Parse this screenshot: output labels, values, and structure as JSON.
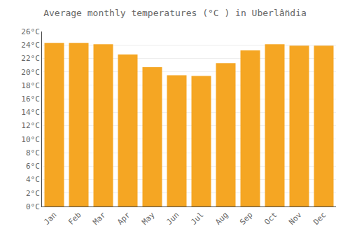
{
  "chart_data": {
    "type": "bar",
    "title": "Average monthly temperatures (°C ) in Uberlâ̈ndia",
    "categories": [
      "Jan",
      "Feb",
      "Mar",
      "Apr",
      "May",
      "Jun",
      "Jul",
      "Aug",
      "Sep",
      "Oct",
      "Nov",
      "Dec"
    ],
    "values": [
      24.3,
      24.3,
      24.1,
      22.6,
      20.7,
      19.5,
      19.4,
      21.3,
      23.2,
      24.1,
      23.9,
      23.9
    ],
    "color": "#F5A623",
    "ylim": [
      0,
      26
    ],
    "yticks": [
      {
        "value": 0,
        "label": "0°C"
      },
      {
        "value": 2,
        "label": "2°C"
      },
      {
        "value": 4,
        "label": "4°C"
      },
      {
        "value": 6,
        "label": "6°C"
      },
      {
        "value": 8,
        "label": "8°C"
      },
      {
        "value": 10,
        "label": "10°C"
      },
      {
        "value": 12,
        "label": "12°C"
      },
      {
        "value": 14,
        "label": "14°C"
      },
      {
        "value": 16,
        "label": "16°C"
      },
      {
        "value": 18,
        "label": "18°C"
      },
      {
        "value": 20,
        "label": "20°C"
      },
      {
        "value": 22,
        "label": "22°C"
      },
      {
        "value": 24,
        "label": "24°C"
      },
      {
        "value": 26,
        "label": "26°C"
      }
    ],
    "grid": true
  }
}
